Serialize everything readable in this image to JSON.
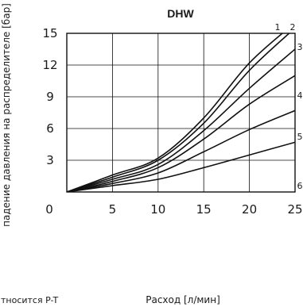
{
  "chart_data": {
    "type": "line",
    "title": "DHW",
    "xlabel": "Расход [л/мин]",
    "ylabel": "падение давления на распределителе [бар]",
    "footnote": "тносится P-T",
    "xlim": [
      0,
      25
    ],
    "ylim": [
      0,
      15
    ],
    "x_ticks": [
      "0",
      "5",
      "10",
      "15",
      "20",
      "25"
    ],
    "y_ticks": [
      "3",
      "6",
      "9",
      "12",
      "15"
    ],
    "grid": true,
    "x": [
      0,
      5,
      10,
      15,
      20,
      25
    ],
    "series": [
      {
        "name": "1",
        "values": [
          0,
          1.6,
          3.2,
          7.0,
          12.2,
          16.0
        ]
      },
      {
        "name": "2",
        "values": [
          0,
          1.4,
          3.0,
          6.5,
          11.5,
          15.5
        ]
      },
      {
        "name": "3",
        "values": [
          0,
          1.2,
          2.6,
          5.8,
          9.8,
          13.5
        ]
      },
      {
        "name": "4",
        "values": [
          0,
          1.0,
          2.3,
          5.0,
          8.3,
          11.0
        ]
      },
      {
        "name": "5",
        "values": [
          0,
          0.8,
          1.8,
          3.8,
          5.9,
          7.7
        ]
      },
      {
        "name": "6",
        "values": [
          0,
          0.6,
          1.2,
          2.3,
          3.5,
          4.7
        ]
      }
    ]
  }
}
